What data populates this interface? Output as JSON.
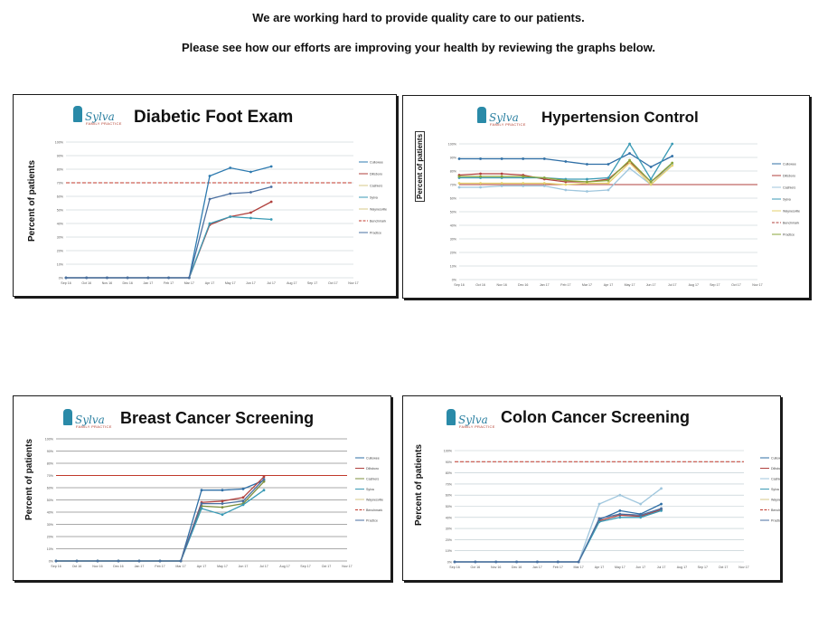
{
  "header": {
    "line1": "We are working hard to provide quality care to our patients.",
    "line2": "Please see how our efforts are improving your health by reviewing the graphs below."
  },
  "logo": {
    "brand": "Sylva",
    "sub": "FAMILY PRACTICE"
  },
  "colors": {
    "series": [
      "#2f6fa6",
      "#b0413e",
      "#9fc6dd",
      "#3a9ab5",
      "#e6d26e",
      "#c0392b",
      "#7d8f3c",
      "#4a6fa0"
    ]
  },
  "chart_data": [
    {
      "type": "line",
      "title": "Diabetic Foot Exam",
      "ylabel": "Percent of patients",
      "x": [
        "Sep 16",
        "Oct 16",
        "Nov 16",
        "Dec 16",
        "Jan 17",
        "Feb 17",
        "Mar 17",
        "Apr 17",
        "May 17",
        "Jun 17",
        "Jul 17",
        "Aug 17",
        "Sep 17",
        "Oct 17",
        "Nov 17"
      ],
      "yticks": [
        "0%",
        "10%",
        "20%",
        "30%",
        "40%",
        "50%",
        "60%",
        "70%",
        "80%",
        "90%",
        "100%"
      ],
      "ylim": [
        0,
        100
      ],
      "legend": [
        "Cullowee",
        "Dillsboro",
        "Cashiers",
        "Sylva",
        "Waynesville",
        "Benchmark",
        "Practice"
      ],
      "series": [
        {
          "name": "Cullowee",
          "color": "#2f7bb0",
          "values": [
            0,
            0,
            0,
            0,
            0,
            0,
            0,
            75,
            81,
            78,
            82,
            null,
            null,
            null,
            null
          ]
        },
        {
          "name": "Dillsboro",
          "color": "#b0413e",
          "values": [
            0,
            0,
            0,
            0,
            0,
            0,
            0,
            39,
            45,
            48,
            56,
            null,
            null,
            null,
            null
          ]
        },
        {
          "name": "Sylva",
          "color": "#3a9ab5",
          "values": [
            0,
            0,
            0,
            0,
            0,
            0,
            0,
            40,
            45,
            44,
            43,
            null,
            null,
            null,
            null
          ]
        },
        {
          "name": "Practice",
          "color": "#4a6fa0",
          "values": [
            0,
            0,
            0,
            0,
            0,
            0,
            0,
            58,
            62,
            63,
            67,
            null,
            null,
            null,
            null
          ]
        }
      ],
      "benchmark": {
        "name": "Benchmark",
        "color": "#c0392b",
        "value": 70
      }
    },
    {
      "type": "line",
      "title": "Hypertension Control",
      "ylabel": "Percent of patients",
      "x": [
        "Sep 16",
        "Oct 16",
        "Nov 16",
        "Dec 16",
        "Jan 17",
        "Feb 17",
        "Mar 17",
        "Apr 17",
        "May 17",
        "Jun 17",
        "Jul 17",
        "Aug 17",
        "Sep 17",
        "Oct 17",
        "Nov 17"
      ],
      "yticks": [
        "0%",
        "10%",
        "20%",
        "30%",
        "40%",
        "50%",
        "60%",
        "70%",
        "80%",
        "90%",
        "100%"
      ],
      "ylim": [
        0,
        100
      ],
      "legend": [
        "Cullowee",
        "Dillsboro",
        "Cashiers",
        "Sylva",
        "Waynesville",
        "Benchmark",
        "Practice"
      ],
      "series": [
        {
          "name": "Cullowee",
          "color": "#2f6fa6",
          "values": [
            89,
            89,
            89,
            89,
            89,
            87,
            85,
            85,
            93,
            83,
            91,
            null,
            null,
            null,
            null
          ]
        },
        {
          "name": "Dillsboro",
          "color": "#b0413e",
          "values": [
            77,
            78,
            78,
            77,
            74,
            72,
            72,
            74,
            87,
            72,
            85,
            null,
            null,
            null,
            null
          ]
        },
        {
          "name": "Cashiers",
          "color": "#9fc6dd",
          "values": [
            68,
            68,
            69,
            69,
            69,
            66,
            65,
            66,
            82,
            70,
            85,
            null,
            null,
            null,
            null
          ]
        },
        {
          "name": "Sylva",
          "color": "#3a9ab5",
          "values": [
            75,
            75,
            75,
            75,
            75,
            74,
            74,
            75,
            100,
            74,
            100,
            null,
            null,
            null,
            null
          ]
        },
        {
          "name": "Waynesville",
          "color": "#e6d26e",
          "values": [
            71,
            71,
            71,
            71,
            71,
            70,
            71,
            71,
            86,
            70,
            84,
            null,
            null,
            null,
            null
          ]
        },
        {
          "name": "Practice",
          "color": "#8aa63a",
          "values": [
            76,
            76,
            76,
            76,
            75,
            73,
            72,
            73,
            88,
            72,
            86,
            null,
            null,
            null,
            null
          ]
        }
      ],
      "benchmark": {
        "name": "Benchmark",
        "color": "#b0413e",
        "value": 70
      }
    },
    {
      "type": "line",
      "title": "Breast Cancer Screening",
      "ylabel": "Percent of patients",
      "x": [
        "Sep 16",
        "Oct 16",
        "Nov 16",
        "Dec 16",
        "Jan 17",
        "Feb 17",
        "Mar 17",
        "Apr 17",
        "May 17",
        "Jun 17",
        "Jul 17",
        "Aug 17",
        "Sep 17",
        "Oct 17",
        "Nov 17"
      ],
      "yticks": [
        "0%",
        "10%",
        "20%",
        "30%",
        "40%",
        "50%",
        "60%",
        "70%",
        "80%",
        "90%",
        "100%"
      ],
      "ylim": [
        0,
        100
      ],
      "legend": [
        "Cullowee",
        "Dillsboro",
        "Cashiers",
        "Sylva",
        "Waynesville",
        "Benchmark",
        "Practice"
      ],
      "series": [
        {
          "name": "Cullowee",
          "color": "#2f6fa6",
          "values": [
            0,
            0,
            0,
            0,
            0,
            0,
            0,
            58,
            58,
            59,
            66,
            null,
            null,
            null,
            null
          ]
        },
        {
          "name": "Dillsboro",
          "color": "#b0413e",
          "values": [
            0,
            0,
            0,
            0,
            0,
            0,
            0,
            48,
            49,
            52,
            69,
            null,
            null,
            null,
            null
          ]
        },
        {
          "name": "Cashiers",
          "color": "#7d8f3c",
          "values": [
            0,
            0,
            0,
            0,
            0,
            0,
            0,
            45,
            44,
            47,
            65,
            null,
            null,
            null,
            null
          ]
        },
        {
          "name": "Sylva",
          "color": "#3a9ab5",
          "values": [
            0,
            0,
            0,
            0,
            0,
            0,
            0,
            43,
            38,
            46,
            58,
            null,
            null,
            null,
            null
          ]
        },
        {
          "name": "Practice",
          "color": "#4a6fa0",
          "values": [
            0,
            0,
            0,
            0,
            0,
            0,
            0,
            47,
            47,
            49,
            67,
            null,
            null,
            null,
            null
          ]
        }
      ],
      "benchmark": {
        "name": "Benchmark",
        "color": "#c0392b",
        "value": 70
      }
    },
    {
      "type": "line",
      "title": "Colon Cancer Screening",
      "ylabel": "Percent of patients",
      "x": [
        "Sep 16",
        "Oct 16",
        "Nov 16",
        "Dec 16",
        "Jan 17",
        "Feb 17",
        "Mar 17",
        "Apr 17",
        "May 17",
        "Jun 17",
        "Jul 17",
        "Aug 17",
        "Sep 17",
        "Oct 17",
        "Nov 17"
      ],
      "yticks": [
        "0%",
        "10%",
        "20%",
        "30%",
        "40%",
        "50%",
        "60%",
        "70%",
        "80%",
        "90%",
        "100%"
      ],
      "ylim": [
        0,
        100
      ],
      "legend": [
        "Cullowee",
        "Dillsboro",
        "Cashiers",
        "Sylva",
        "Waynesville",
        "Benchmark",
        "Practice"
      ],
      "series": [
        {
          "name": "Cullowee",
          "color": "#2f6fa6",
          "values": [
            0,
            0,
            0,
            0,
            0,
            0,
            0,
            38,
            46,
            43,
            52,
            null,
            null,
            null,
            null
          ]
        },
        {
          "name": "Dillsboro",
          "color": "#b0413e",
          "values": [
            0,
            0,
            0,
            0,
            0,
            0,
            0,
            37,
            42,
            41,
            47,
            null,
            null,
            null,
            null
          ]
        },
        {
          "name": "Cashiers",
          "color": "#9fc6dd",
          "values": [
            0,
            0,
            0,
            0,
            0,
            0,
            0,
            52,
            60,
            52,
            66,
            null,
            null,
            null,
            null
          ]
        },
        {
          "name": "Sylva",
          "color": "#3a9ab5",
          "values": [
            0,
            0,
            0,
            0,
            0,
            0,
            0,
            36,
            40,
            40,
            46,
            null,
            null,
            null,
            null
          ]
        },
        {
          "name": "Practice",
          "color": "#4a6fa0",
          "values": [
            0,
            0,
            0,
            0,
            0,
            0,
            0,
            39,
            43,
            42,
            48,
            null,
            null,
            null,
            null
          ]
        }
      ],
      "benchmark": {
        "name": "Benchmark",
        "color": "#c0392b",
        "value": 90
      }
    }
  ]
}
